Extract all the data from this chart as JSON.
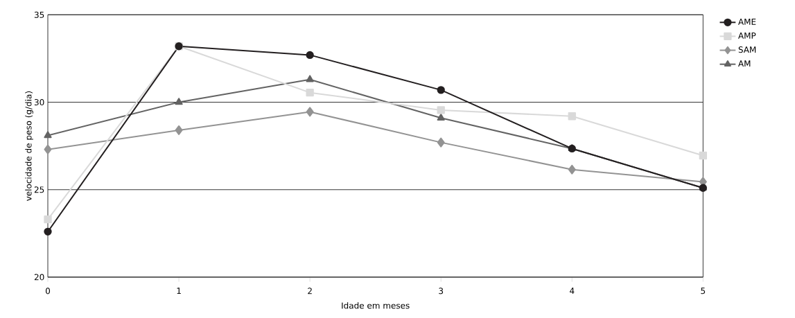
{
  "chart_data": {
    "type": "line",
    "xlabel": "Idade em meses",
    "ylabel": "velocidade de peso (g/dia)",
    "x": [
      0,
      1,
      2,
      3,
      4,
      5
    ],
    "series": [
      {
        "name": "AME",
        "color": "#231f20",
        "marker": "circle",
        "values": [
          22.6,
          33.2,
          32.7,
          30.7,
          27.35,
          25.1
        ]
      },
      {
        "name": "AMP",
        "color": "#d9d9d9",
        "marker": "square",
        "values": [
          23.3,
          33.2,
          30.55,
          29.55,
          29.2,
          26.95
        ]
      },
      {
        "name": "SAM",
        "color": "#939393",
        "marker": "diamond",
        "values": [
          27.3,
          28.4,
          29.45,
          27.7,
          26.15,
          25.45
        ]
      },
      {
        "name": "AM",
        "color": "#636363",
        "marker": "triangle",
        "values": [
          28.1,
          30.0,
          31.3,
          29.1,
          27.35,
          25.1
        ]
      }
    ],
    "xlim": [
      0,
      5
    ],
    "ylim": [
      20,
      35
    ],
    "xticks": [
      0,
      1,
      2,
      3,
      4,
      5
    ],
    "yticks": [
      20,
      25,
      30,
      35
    ],
    "grid": "y",
    "legend": "top right",
    "line_style": "solid"
  }
}
